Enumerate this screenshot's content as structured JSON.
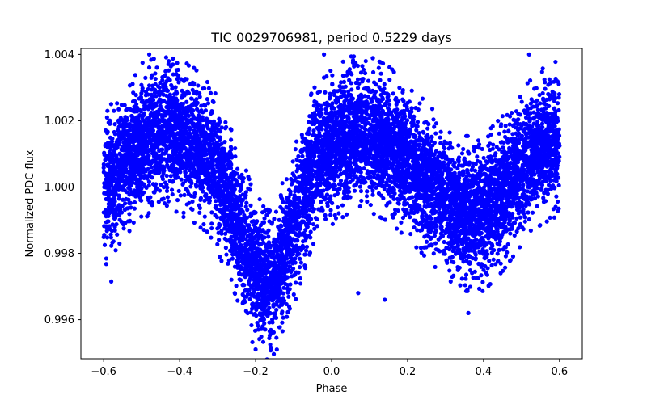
{
  "chart_data": {
    "type": "scatter",
    "title": "TIC 0029706981, period 0.5229 days",
    "xlabel": "Phase",
    "ylabel": "Normalized PDC flux",
    "xlim": [
      -0.66,
      0.66
    ],
    "ylim": [
      0.99482,
      1.00418
    ],
    "xticks": [
      -0.6,
      -0.4,
      -0.2,
      0.0,
      0.2,
      0.4,
      0.6
    ],
    "xtick_labels": [
      "−0.6",
      "−0.4",
      "−0.2",
      "0.0",
      "0.2",
      "0.4",
      "0.6"
    ],
    "yticks": [
      0.996,
      0.998,
      1.0,
      1.002,
      1.004
    ],
    "ytick_labels": [
      "0.996",
      "0.998",
      "1.000",
      "1.002",
      "1.004"
    ],
    "grid": false,
    "marker_color": "#0000ff",
    "series": [
      {
        "name": "light curve",
        "curve_model": {
          "description": "phase-folded mean flux profile (eclipsing binary) with scatter ~0.0009",
          "x": [
            -0.6,
            -0.55,
            -0.5,
            -0.45,
            -0.4,
            -0.35,
            -0.3,
            -0.25,
            -0.22,
            -0.2,
            -0.18,
            -0.15,
            -0.12,
            -0.08,
            -0.05,
            0.0,
            0.05,
            0.1,
            0.15,
            0.2,
            0.25,
            0.3,
            0.35,
            0.4,
            0.45,
            0.5,
            0.55,
            0.6
          ],
          "y": [
            0.9998,
            1.0008,
            1.0014,
            1.0016,
            1.0015,
            1.0012,
            1.0004,
            0.999,
            0.998,
            0.9974,
            0.9972,
            0.9973,
            0.998,
            0.9995,
            1.0006,
            1.0012,
            1.0016,
            1.0016,
            1.0013,
            1.0008,
            1.0002,
            0.9996,
            0.9992,
            0.9992,
            0.9998,
            1.0006,
            1.0012,
            1.0015
          ],
          "scatter_sigma": 0.0009,
          "n_points": 9000
        },
        "outliers": [
          {
            "x": -0.48,
            "y": 1.004
          },
          {
            "x": -0.02,
            "y": 1.004
          },
          {
            "x": 0.09,
            "y": 1.0038
          },
          {
            "x": 0.52,
            "y": 1.004
          },
          {
            "x": -0.17,
            "y": 0.9948
          },
          {
            "x": -0.2,
            "y": 0.9951
          },
          {
            "x": 0.14,
            "y": 0.9966
          },
          {
            "x": 0.36,
            "y": 0.9962
          },
          {
            "x": -0.58,
            "y": 0.99715
          },
          {
            "x": 0.07,
            "y": 0.9968
          }
        ]
      }
    ]
  }
}
